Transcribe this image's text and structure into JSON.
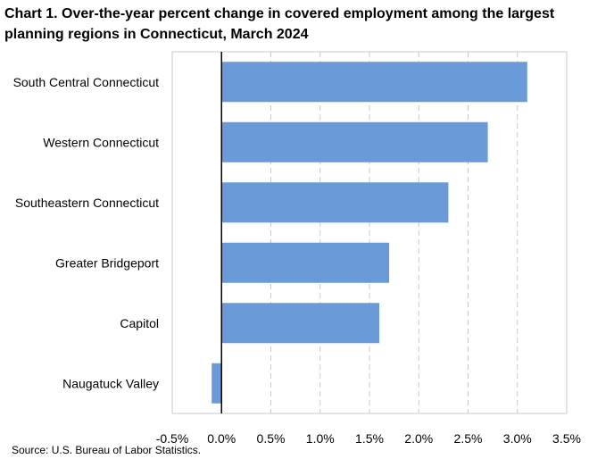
{
  "chart_data": {
    "type": "bar",
    "orientation": "horizontal",
    "title": "Chart 1. Over-the-year percent change in covered employment among the largest planning regions in Connecticut, March 2024",
    "categories": [
      "South Central Connecticut",
      "Western Connecticut",
      "Southeastern Connecticut",
      "Greater Bridgeport",
      "Capitol",
      "Naugatuck Valley"
    ],
    "values": [
      3.1,
      2.7,
      2.3,
      1.7,
      1.6,
      -0.1
    ],
    "value_unit": "percent",
    "xlim": [
      -0.5,
      3.5
    ],
    "x_ticks": [
      -0.5,
      0.0,
      0.5,
      1.0,
      1.5,
      2.0,
      2.5,
      3.0,
      3.5
    ],
    "x_tick_labels": [
      "-0.5%",
      "0.0%",
      "0.5%",
      "1.0%",
      "1.5%",
      "2.0%",
      "2.5%",
      "3.0%",
      "3.5%"
    ],
    "xlabel": "",
    "ylabel": "",
    "grid": "vertical dashed",
    "legend": "none",
    "bar_color": "#6a9bd8",
    "grid_color": "#c8c8c8",
    "source": "Source: U.S. Bureau of Labor Statistics."
  }
}
